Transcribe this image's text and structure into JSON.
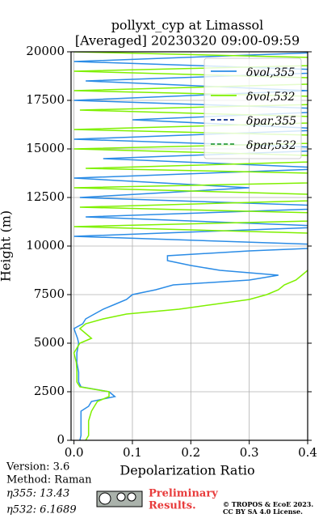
{
  "chart_data": {
    "type": "line",
    "title": [
      "pollyxt_cyp at Limassol",
      "[Averaged] 20230320 09:00-09:59"
    ],
    "xlabel": "Depolarization Ratio",
    "ylabel": "Height (m)",
    "xlim": [
      -0.005,
      0.4
    ],
    "ylim": [
      0,
      20000
    ],
    "xticks": [
      {
        "value": 0,
        "label": "0.0"
      },
      0.1,
      0.2,
      0.3,
      0.4
    ],
    "yticks": [
      0,
      2500,
      5000,
      7500,
      10000,
      12500,
      15000,
      17500,
      20000
    ],
    "grid": true,
    "legend": "upper right",
    "y": [
      0,
      250,
      500,
      1000,
      1500,
      1750,
      2000,
      2250,
      2500,
      2750,
      3000,
      3500,
      4000,
      4500,
      5000,
      5250,
      5500,
      5750,
      6000,
      6250,
      6500,
      6750,
      7000,
      7250,
      7500,
      7750,
      8000,
      8250,
      8500,
      8750,
      9000,
      9250,
      9500,
      9750,
      10000,
      10500,
      11000,
      11500,
      12000,
      12500,
      13000,
      13500,
      14000,
      14500,
      15000,
      15500,
      16000,
      16500,
      17000,
      17500,
      18000,
      18500,
      19000,
      19500,
      20000
    ],
    "series": [
      {
        "name": "δvol,355",
        "color": "#2b8ce6",
        "dash": false,
        "values": [
          0.01,
          0.012,
          0.012,
          0.012,
          0.012,
          0.025,
          0.03,
          0.07,
          0.06,
          0.012,
          0.008,
          0.008,
          0.005,
          0.005,
          0.008,
          0.006,
          0.003,
          0.0,
          0.015,
          0.02,
          0.035,
          0.05,
          0.07,
          0.09,
          0.1,
          0.14,
          0.17,
          0.3,
          0.35,
          0.25,
          0.2,
          0.16,
          0.16,
          0.3,
          0.5,
          0.0,
          0.45,
          0.02,
          0.5,
          0.01,
          0.3,
          0.0,
          0.45,
          0.05,
          0.5,
          0.0,
          0.45,
          0.1,
          0.5,
          0.0,
          0.4,
          0.02,
          0.5,
          0.0,
          0.45
        ]
      },
      {
        "name": "δvol,532",
        "color": "#7ff000",
        "dash": false,
        "values": [
          0.02,
          0.025,
          0.025,
          0.025,
          0.03,
          0.035,
          0.04,
          0.06,
          0.06,
          0.01,
          0.005,
          0.005,
          0.004,
          0.0,
          0.01,
          0.03,
          0.02,
          0.01,
          0.02,
          0.05,
          0.09,
          0.18,
          0.24,
          0.3,
          0.33,
          0.35,
          0.36,
          0.38,
          0.39,
          0.4,
          0.42,
          0.45,
          0.5,
          0.6,
          0.7,
          0.6,
          0.0,
          0.7,
          0.01,
          0.6,
          0.0,
          0.8,
          0.02,
          0.6,
          0.0,
          0.7,
          0.0,
          0.6,
          0.01,
          0.7,
          0.0,
          0.6,
          0.0,
          0.7,
          0.0
        ]
      },
      {
        "name": "δpar,355",
        "color": "#0a2c8c",
        "dash": true,
        "values": [
          null,
          null,
          null,
          null,
          null,
          null,
          null,
          null,
          null,
          null,
          null,
          null,
          null,
          null,
          null,
          null,
          null,
          null,
          null,
          null,
          null,
          null,
          null,
          null,
          null,
          null,
          null,
          null,
          null,
          null,
          null,
          null,
          null,
          null,
          null,
          null,
          null,
          null,
          null,
          null,
          null,
          null,
          null,
          null,
          null,
          null,
          null,
          null,
          null,
          null,
          null,
          null,
          null,
          null,
          null
        ]
      },
      {
        "name": "δpar,532",
        "color": "#2e9c3e",
        "dash": true,
        "values": [
          null,
          null,
          null,
          null,
          null,
          null,
          null,
          null,
          null,
          null,
          null,
          null,
          null,
          null,
          null,
          null,
          null,
          null,
          null,
          null,
          null,
          null,
          null,
          null,
          null,
          null,
          null,
          null,
          null,
          null,
          null,
          null,
          null,
          null,
          null,
          null,
          null,
          null,
          null,
          null,
          null,
          null,
          null,
          null,
          null,
          null,
          null,
          null,
          null,
          null,
          null,
          null,
          null,
          null,
          null
        ]
      }
    ],
    "info": [
      "Version: 3.6",
      "Method: Raman",
      "η355:  13.43",
      "η532: 6.1689"
    ],
    "notice": [
      "Preliminary",
      "Results."
    ],
    "copyright": [
      "© TROPOS & EcoE 2023.",
      "CC BY SA 4.0 License."
    ]
  }
}
